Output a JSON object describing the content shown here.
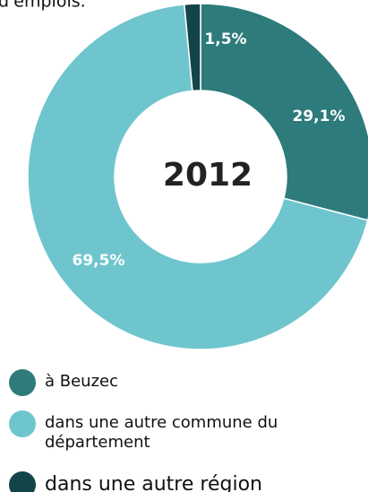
{
  "header_text": "d'emplois.",
  "chart_data": {
    "type": "donut",
    "title": "2012",
    "categories": [
      "à Beuzec",
      "dans une autre commune du département",
      "dans une autre région"
    ],
    "values": [
      29.1,
      69.5,
      1.5
    ],
    "value_labels": [
      "29,1%",
      "69,5%",
      "1,5%"
    ],
    "colors": [
      "#2e7b7c",
      "#6fc5ce",
      "#124449"
    ]
  }
}
